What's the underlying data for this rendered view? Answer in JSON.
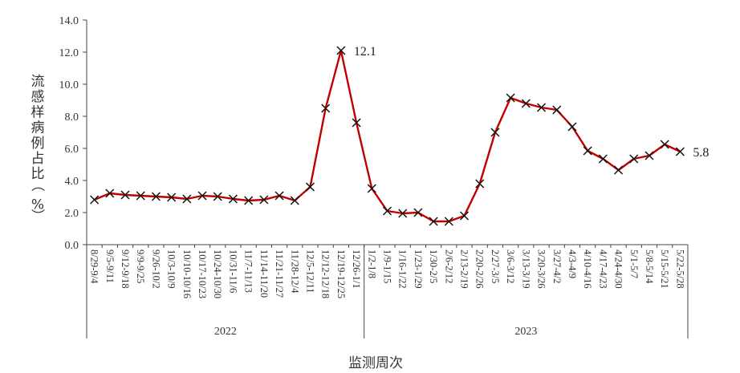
{
  "chart_data": {
    "type": "line",
    "title": "",
    "xlabel": "监测周次",
    "ylabel": "流感样病例占比（%）",
    "ylim": [
      0,
      14
    ],
    "yticks": [
      "0.0",
      "2.0",
      "4.0",
      "6.0",
      "8.0",
      "10.0",
      "12.0",
      "14.0"
    ],
    "grid": false,
    "legend": "none",
    "line_color": "#c00000",
    "marker": "x",
    "categories": [
      "8/29-9/4",
      "9/5-9/11",
      "9/12-9/18",
      "9/9-9/25",
      "9/26-10/2",
      "10/3-10/9",
      "10/10-10/16",
      "10/17-10/23",
      "10/24-10/30",
      "10/31-11/6",
      "11/7-11/13",
      "11/14-11/20",
      "11/21-11/27",
      "11/28-12/4",
      "12/5-12/11",
      "12/12-12/18",
      "12/19-12/25",
      "12/26-1/1",
      "1/2-1/8",
      "1/9-1/15",
      "1/16-1/22",
      "1/23-1/29",
      "1/30-2/5",
      "2/6-2/12",
      "2/13-2/19",
      "2/20-2/26",
      "2/27-3/5",
      "3/6-3/12",
      "3/13-3/19",
      "3/20-3/26",
      "3/27-4/2",
      "4/3-4/9",
      "4/10-4/16",
      "4/17-4/23",
      "4/24-4/30",
      "5/1-5/7",
      "5/8-5/14",
      "5/15-5/21",
      "5/22-5/28"
    ],
    "values": [
      2.8,
      3.2,
      3.1,
      3.05,
      3.0,
      2.95,
      2.85,
      3.05,
      3.0,
      2.85,
      2.75,
      2.8,
      3.05,
      2.75,
      3.6,
      8.5,
      12.1,
      7.6,
      3.5,
      2.1,
      1.95,
      2.0,
      1.45,
      1.45,
      1.8,
      3.8,
      7.0,
      9.15,
      8.8,
      8.55,
      8.4,
      7.35,
      5.85,
      5.35,
      4.65,
      5.35,
      5.55,
      6.25,
      5.8
    ],
    "year_groups": [
      {
        "label": "2022",
        "start": 0,
        "count": 18
      },
      {
        "label": "2023",
        "start": 18,
        "count": 21
      }
    ],
    "annotations": [
      {
        "index": 16,
        "text": "12.1"
      },
      {
        "index": 38,
        "text": "5.8"
      }
    ]
  }
}
